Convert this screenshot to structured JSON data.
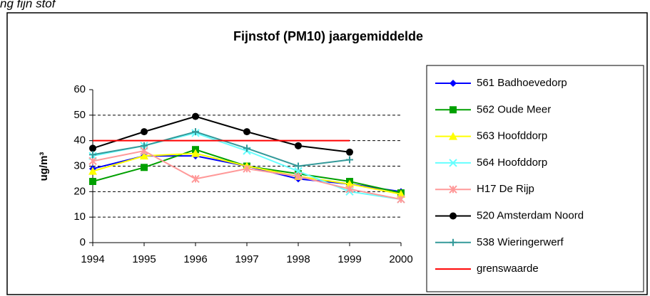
{
  "caption": "ng fijn stof",
  "chart_data": {
    "type": "line",
    "title": "Fijnstof (PM10) jaargemiddelde",
    "y_label": "ug/m³",
    "categories": [
      "1994",
      "1995",
      "1996",
      "1997",
      "1998",
      "1999",
      "2000"
    ],
    "ylim": [
      0,
      60
    ],
    "yticks": [
      0,
      10,
      20,
      30,
      40,
      50,
      60
    ],
    "grid": true,
    "legend": "right",
    "series": [
      {
        "name": "561 Badhoevedorp",
        "color": "#0000ff",
        "marker": "diamond",
        "values": [
          29,
          34,
          34,
          30,
          25,
          23,
          20
        ]
      },
      {
        "name": "562 Oude Meer",
        "color": "#00a000",
        "marker": "square",
        "values": [
          24,
          29.5,
          36.5,
          30,
          27,
          24,
          19.5
        ]
      },
      {
        "name": "563 Hoofddorp",
        "color": "#ffff00",
        "marker": "triangle",
        "values": [
          28,
          34,
          35,
          30,
          26,
          23,
          19
        ]
      },
      {
        "name": "564 Hoofddorp",
        "color": "#66ffff",
        "marker": "x",
        "values": [
          34,
          38,
          43,
          36,
          28,
          20,
          17
        ]
      },
      {
        "name": "H17 De Rijp",
        "color": "#ff9999",
        "marker": "star",
        "values": [
          32,
          36,
          25,
          29,
          26,
          21,
          17
        ]
      },
      {
        "name": "520 Amsterdam Noord",
        "color": "#000000",
        "marker": "circle",
        "values": [
          37,
          43.5,
          49.5,
          43.5,
          38,
          35.5,
          null
        ]
      },
      {
        "name": "538 Wieringerwerf",
        "color": "#339999",
        "marker": "plus",
        "values": [
          34.5,
          38,
          43.5,
          37,
          30,
          32.5,
          null
        ]
      },
      {
        "name": "grenswaarde",
        "color": "#ff0000",
        "values": [
          40,
          40,
          40,
          40,
          40,
          40,
          null
        ]
      }
    ]
  }
}
